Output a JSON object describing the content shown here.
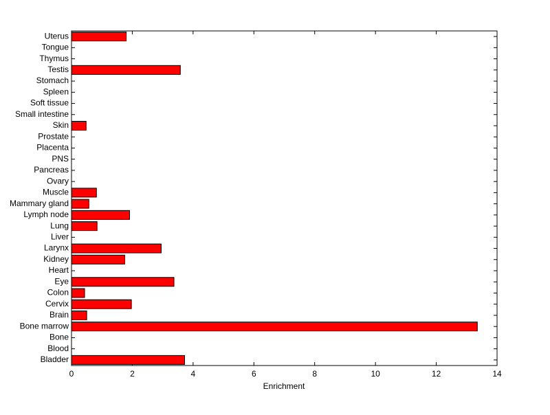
{
  "chart_data": {
    "type": "barh",
    "xlabel": "Enrichment",
    "categories": [
      "Bladder",
      "Blood",
      "Bone",
      "Bone marrow",
      "Brain",
      "Cervix",
      "Colon",
      "Eye",
      "Heart",
      "Kidney",
      "Larynx",
      "Liver",
      "Lung",
      "Lymph node",
      "Mammary gland",
      "Muscle",
      "Ovary",
      "Pancreas",
      "PNS",
      "Placenta",
      "Prostate",
      "Skin",
      "Small intestine",
      "Soft tissue",
      "Spleen",
      "Stomach",
      "Testis",
      "Thymus",
      "Tongue",
      "Uterus"
    ],
    "values": [
      3.72,
      0,
      0,
      13.35,
      0.5,
      1.97,
      0.43,
      3.37,
      0,
      1.75,
      2.95,
      0,
      0.84,
      1.91,
      0.57,
      0.82,
      0,
      0,
      0,
      0,
      0,
      0.48,
      0,
      0,
      0,
      0,
      3.58,
      0,
      0,
      1.8
    ],
    "color": "#ff0000",
    "xlim": [
      0,
      14
    ],
    "xticks": [
      0,
      2,
      4,
      6,
      8,
      10,
      12,
      14
    ]
  }
}
